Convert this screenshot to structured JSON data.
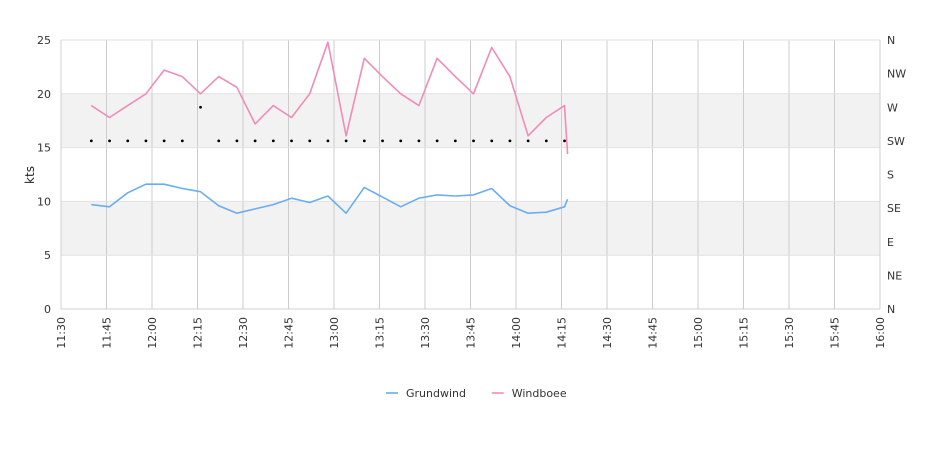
{
  "chart_data": {
    "type": "line",
    "ylabel": "kts",
    "ylim": [
      0,
      25
    ],
    "y_ticks": [
      "0",
      "5",
      "10",
      "15",
      "20",
      "25"
    ],
    "x_ticks": [
      "11:30",
      "11:45",
      "12:00",
      "12:15",
      "12:30",
      "12:45",
      "13:00",
      "13:15",
      "13:30",
      "13:45",
      "14:00",
      "14:15",
      "14:30",
      "14:45",
      "15:00",
      "15:15",
      "15:30",
      "15:45",
      "16:00"
    ],
    "direction_ticks": [
      "N",
      "NW",
      "W",
      "SW",
      "S",
      "SE",
      "E",
      "NE",
      "N"
    ],
    "x_time": [
      "11:40",
      "11:46",
      "11:52",
      "11:58",
      "12:04",
      "12:10",
      "12:16",
      "12:22",
      "12:28",
      "12:34",
      "12:40",
      "12:46",
      "12:52",
      "12:58",
      "13:04",
      "13:10",
      "13:16",
      "13:22",
      "13:28",
      "13:34",
      "13:40",
      "13:46",
      "13:52",
      "13:58",
      "14:04",
      "14:10",
      "14:16",
      "14:22",
      "14:28",
      "14:34",
      "14:40",
      "14:46",
      "14:52",
      "14:58",
      "15:04",
      "15:10",
      "15:16",
      "15:22",
      "15:28",
      "15:34",
      "15:40",
      "15:46",
      "15:52",
      "15:58",
      "16:00"
    ],
    "grid": true,
    "legend_position": "bottom-center",
    "series": [
      {
        "name": "Grundwind",
        "color": "#6aaef0",
        "points": [
          [
            "11:40",
            9.7
          ],
          [
            "11:46",
            9.5
          ],
          [
            "11:52",
            10.8
          ],
          [
            "11:58",
            11.6
          ],
          [
            "12:04",
            11.6
          ],
          [
            "12:10",
            11.2
          ],
          [
            "12:16",
            10.9
          ],
          [
            "12:22",
            9.6
          ],
          [
            "12:28",
            8.9
          ],
          [
            "12:34",
            9.3
          ],
          [
            "12:40",
            9.7
          ],
          [
            "12:46",
            10.3
          ],
          [
            "12:52",
            9.9
          ],
          [
            "12:58",
            10.5
          ],
          [
            "13:04",
            8.9
          ],
          [
            "13:10",
            11.3
          ],
          [
            "13:16",
            10.4
          ],
          [
            "13:22",
            9.5
          ],
          [
            "13:28",
            10.3
          ],
          [
            "13:34",
            10.6
          ],
          [
            "13:40",
            10.5
          ],
          [
            "13:46",
            10.6
          ],
          [
            "13:52",
            11.2
          ],
          [
            "13:58",
            9.6
          ],
          [
            "14:04",
            8.9
          ],
          [
            "14:10",
            9.0
          ],
          [
            "14:16",
            9.5
          ],
          [
            "14:17",
            10.2
          ]
        ]
      },
      {
        "name": "Windboee",
        "color": "#f08cb8",
        "points": [
          [
            "11:40",
            18.9
          ],
          [
            "11:46",
            17.8
          ],
          [
            "11:52",
            18.9
          ],
          [
            "11:58",
            20.0
          ],
          [
            "12:04",
            22.2
          ],
          [
            "12:10",
            21.6
          ],
          [
            "12:16",
            20.0
          ],
          [
            "12:22",
            21.6
          ],
          [
            "12:28",
            20.6
          ],
          [
            "12:34",
            17.2
          ],
          [
            "12:40",
            18.9
          ],
          [
            "12:46",
            17.8
          ],
          [
            "12:52",
            20.0
          ],
          [
            "12:58",
            24.8
          ],
          [
            "13:04",
            16.1
          ],
          [
            "13:10",
            23.3
          ],
          [
            "13:16",
            21.6
          ],
          [
            "13:22",
            20.0
          ],
          [
            "13:28",
            18.9
          ],
          [
            "13:34",
            23.3
          ],
          [
            "13:40",
            21.6
          ],
          [
            "13:46",
            20.0
          ],
          [
            "13:52",
            24.3
          ],
          [
            "13:58",
            21.6
          ],
          [
            "14:04",
            16.1
          ],
          [
            "14:10",
            17.8
          ],
          [
            "14:16",
            18.9
          ],
          [
            "14:17",
            14.4
          ]
        ]
      }
    ],
    "direction_points": [
      [
        "11:40",
        "SW"
      ],
      [
        "11:46",
        "SW"
      ],
      [
        "11:52",
        "SW"
      ],
      [
        "11:58",
        "SW"
      ],
      [
        "12:04",
        "SW"
      ],
      [
        "12:10",
        "SW"
      ],
      [
        "12:16",
        "W"
      ],
      [
        "12:22",
        "SW"
      ],
      [
        "12:28",
        "SW"
      ],
      [
        "12:34",
        "SW"
      ],
      [
        "12:40",
        "SW"
      ],
      [
        "12:46",
        "SW"
      ],
      [
        "12:52",
        "SW"
      ],
      [
        "12:58",
        "SW"
      ],
      [
        "13:04",
        "SW"
      ],
      [
        "13:10",
        "SW"
      ],
      [
        "13:16",
        "SW"
      ],
      [
        "13:22",
        "SW"
      ],
      [
        "13:28",
        "SW"
      ],
      [
        "13:34",
        "SW"
      ],
      [
        "13:40",
        "SW"
      ],
      [
        "13:46",
        "SW"
      ],
      [
        "13:52",
        "SW"
      ],
      [
        "13:58",
        "SW"
      ],
      [
        "14:04",
        "SW"
      ],
      [
        "14:10",
        "SW"
      ],
      [
        "14:16",
        "SW"
      ]
    ]
  }
}
